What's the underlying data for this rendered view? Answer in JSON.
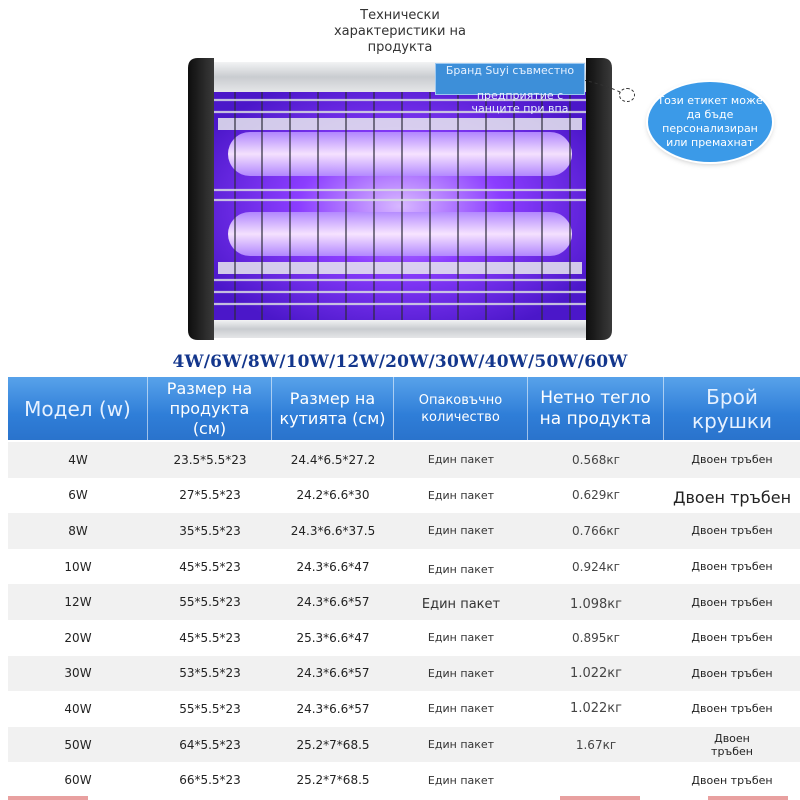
{
  "header": {
    "caption": "Технически характеристики на продукта"
  },
  "product": {
    "brand_tag": "Бранд Suyi съвместно",
    "brand_tag_overflow": "предприятие с чанците при впа",
    "callout": "Този етикет може да бъде персонализиран или премахнат",
    "colors": {
      "uv_glow": "#8a3dff",
      "frame": "#1e1e1e",
      "panel": "#d7d9dc"
    }
  },
  "wattages": "4W/6W/8W/10W/12W/20W/30W/40W/50W/60W",
  "table": {
    "headers": [
      "Модел (w)",
      "Размер на продукта (см)",
      "Размер на кутията (см)",
      "Опаковъчно количество",
      "Нетно тегло на продукта",
      "Брой крушки"
    ],
    "header_color": "#2f7ed8",
    "rows": [
      {
        "model": "4W",
        "size": "23.5*5.5*23",
        "box": "24.4*6.5*27.2",
        "pack": "Един пакет",
        "weight": "0.568кг",
        "bulbs": "Двоен тръбен"
      },
      {
        "model": "6W",
        "size": "27*5.5*23",
        "box": "24.2*6.6*30",
        "pack": "Един пакет",
        "weight": "0.629кг",
        "bulbs": "Двоен тръбен"
      },
      {
        "model": "8W",
        "size": "35*5.5*23",
        "box": "24.3*6.6*37.5",
        "pack": "Един пакет",
        "weight": "0.766кг",
        "bulbs": "Двоен тръбен"
      },
      {
        "model": "10W",
        "size": "45*5.5*23",
        "box": "24.3*6.6*47",
        "pack": "Един пакет",
        "weight": "0.924кг",
        "bulbs": "Двоен тръбен"
      },
      {
        "model": "12W",
        "size": "55*5.5*23",
        "box": "24.3*6.6*57",
        "pack": "Един пакет",
        "weight": "1.098кг",
        "bulbs": "Двоен тръбен"
      },
      {
        "model": "20W",
        "size": "45*5.5*23",
        "box": "25.3*6.6*47",
        "pack": "Един пакет",
        "weight": "0.895кг",
        "bulbs": "Двоен тръбен"
      },
      {
        "model": "30W",
        "size": "53*5.5*23",
        "box": "24.3*6.6*57",
        "pack": "Един пакет",
        "weight": "1.022кг",
        "bulbs": "Двоен тръбен"
      },
      {
        "model": "40W",
        "size": "55*5.5*23",
        "box": "24.3*6.6*57",
        "pack": "Един пакет",
        "weight": "1.022кг",
        "bulbs": "Двоен тръбен"
      },
      {
        "model": "50W",
        "size": "64*5.5*23",
        "box": "25.2*7*68.5",
        "pack": "Един пакет",
        "weight": "1.67кг",
        "bulbs": "Двоен тръбен"
      },
      {
        "model": "60W",
        "size": "66*5.5*23",
        "box": "25.2*7*68.5",
        "pack": "Един пакет",
        "weight": "",
        "bulbs": "Двоен тръбен"
      }
    ]
  }
}
